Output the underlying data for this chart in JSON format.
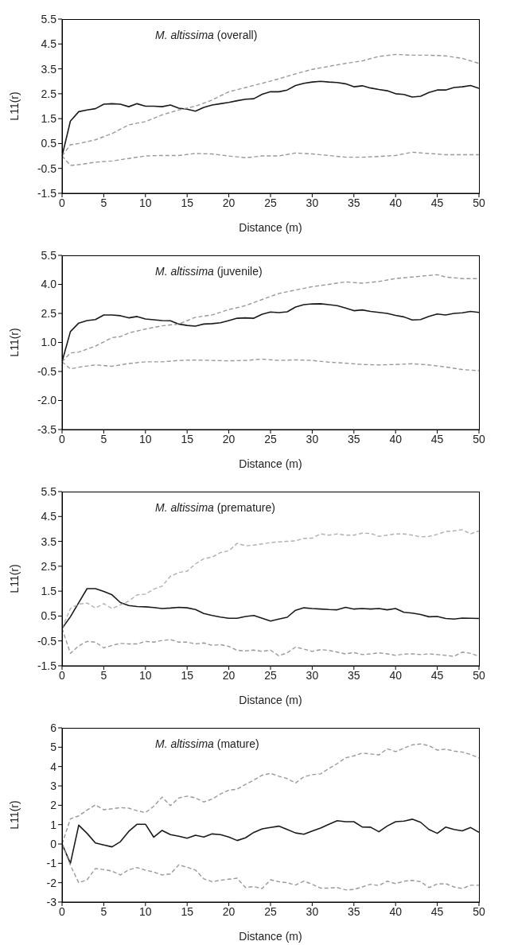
{
  "chart_data": [
    {
      "type": "line",
      "title": "M. altissima (overall)",
      "xlabel": "Distance (m)",
      "ylabel": "L11(r)",
      "xlim": [
        0,
        50
      ],
      "xticks": [
        0,
        5,
        10,
        15,
        20,
        25,
        30,
        35,
        40,
        45,
        50
      ],
      "ylim": [
        -1.5,
        5.5
      ],
      "yticks": [
        -1.5,
        -0.5,
        0.5,
        1.5,
        2.5,
        3.5,
        4.5,
        5.5
      ],
      "grid": false,
      "marker": "none",
      "series": [
        {
          "color": "#1a1a1a",
          "line_style": "solid",
          "x": [
            0,
            1,
            2,
            3,
            4,
            5,
            6,
            7,
            8,
            9,
            10,
            11,
            12,
            13,
            14,
            15,
            16,
            17,
            18,
            19,
            20,
            21,
            22,
            23,
            24,
            25,
            26,
            27,
            28,
            29,
            30,
            31,
            32,
            33,
            34,
            35,
            36,
            37,
            38,
            39,
            40,
            41,
            42,
            43,
            44,
            45,
            46,
            47,
            48,
            49,
            50
          ],
          "values": [
            0,
            1.4,
            1.78,
            1.85,
            1.9,
            2.08,
            2.1,
            2.08,
            1.98,
            2.1,
            2.0,
            2.0,
            1.98,
            2.05,
            1.92,
            1.88,
            1.8,
            1.95,
            2.05,
            2.1,
            2.15,
            2.22,
            2.28,
            2.3,
            2.48,
            2.58,
            2.58,
            2.65,
            2.83,
            2.92,
            2.97,
            3.0,
            2.97,
            2.95,
            2.9,
            2.78,
            2.82,
            2.73,
            2.67,
            2.62,
            2.5,
            2.47,
            2.37,
            2.4,
            2.55,
            2.65,
            2.65,
            2.75,
            2.78,
            2.83,
            2.72
          ]
        },
        {
          "color": "#999999",
          "line_style": "dashed",
          "x": [
            0,
            1,
            2,
            4,
            6,
            8,
            10,
            12,
            14,
            16,
            18,
            20,
            22,
            24,
            26,
            28,
            30,
            32,
            34,
            36,
            38,
            40,
            42,
            44,
            46,
            48,
            50
          ],
          "values": [
            0,
            0.45,
            0.5,
            0.65,
            0.9,
            1.25,
            1.38,
            1.65,
            1.85,
            2.0,
            2.25,
            2.58,
            2.75,
            2.92,
            3.1,
            3.3,
            3.48,
            3.6,
            3.72,
            3.82,
            4.0,
            4.08,
            4.05,
            4.05,
            4.02,
            3.92,
            3.72
          ]
        },
        {
          "color": "#999999",
          "line_style": "dashed",
          "x": [
            0,
            1,
            2,
            4,
            6,
            8,
            10,
            12,
            14,
            16,
            18,
            20,
            22,
            24,
            26,
            28,
            30,
            32,
            34,
            36,
            38,
            40,
            42,
            44,
            46,
            48,
            50
          ],
          "values": [
            0,
            -0.38,
            -0.35,
            -0.25,
            -0.2,
            -0.1,
            0.0,
            0.02,
            0.02,
            0.1,
            0.08,
            0.0,
            -0.07,
            0.0,
            0.0,
            0.12,
            0.08,
            0.02,
            -0.05,
            -0.05,
            -0.02,
            0.02,
            0.15,
            0.1,
            0.05,
            0.05,
            0.05
          ]
        }
      ]
    },
    {
      "type": "line",
      "title": "M. altissima (juvenile)",
      "xlabel": "Distance (m)",
      "ylabel": "L11(r)",
      "xlim": [
        0,
        50
      ],
      "xticks": [
        0,
        5,
        10,
        15,
        20,
        25,
        30,
        35,
        40,
        45,
        50
      ],
      "ylim": [
        -3.5,
        5.5
      ],
      "yticks": [
        -3.5,
        {
          "value": -2,
          "label": "-2.0"
        },
        -0.5,
        {
          "value": 1,
          "label": "1.0"
        },
        2.5,
        {
          "value": 4,
          "label": "4.0"
        },
        5.5
      ],
      "grid": false,
      "marker": "none",
      "series": [
        {
          "color": "#1a1a1a",
          "line_style": "solid",
          "x": [
            0,
            1,
            2,
            3,
            4,
            5,
            6,
            7,
            8,
            9,
            10,
            11,
            12,
            13,
            14,
            15,
            16,
            17,
            18,
            19,
            20,
            21,
            22,
            23,
            24,
            25,
            26,
            27,
            28,
            29,
            30,
            31,
            32,
            33,
            34,
            35,
            36,
            37,
            38,
            39,
            40,
            41,
            42,
            43,
            44,
            45,
            46,
            47,
            48,
            49,
            50
          ],
          "values": [
            0,
            1.56,
            2.0,
            2.13,
            2.18,
            2.42,
            2.42,
            2.38,
            2.27,
            2.34,
            2.21,
            2.17,
            2.13,
            2.12,
            1.95,
            1.88,
            1.84,
            1.95,
            1.97,
            2.02,
            2.13,
            2.25,
            2.27,
            2.25,
            2.46,
            2.57,
            2.54,
            2.58,
            2.83,
            2.95,
            2.99,
            3.0,
            2.95,
            2.9,
            2.78,
            2.64,
            2.68,
            2.6,
            2.55,
            2.5,
            2.4,
            2.32,
            2.16,
            2.18,
            2.35,
            2.47,
            2.42,
            2.5,
            2.53,
            2.6,
            2.55
          ]
        },
        {
          "color": "#999999",
          "line_style": "dashed",
          "x": [
            0,
            1,
            2,
            4,
            6,
            7,
            8,
            10,
            12,
            14,
            16,
            18,
            20,
            22,
            24,
            26,
            28,
            30,
            32,
            34,
            36,
            38,
            40,
            42,
            44,
            45,
            46,
            48,
            50
          ],
          "values": [
            0,
            0.46,
            0.5,
            0.81,
            1.25,
            1.3,
            1.49,
            1.69,
            1.86,
            1.95,
            2.3,
            2.42,
            2.7,
            2.9,
            3.22,
            3.53,
            3.71,
            3.88,
            4.0,
            4.13,
            4.06,
            4.15,
            4.3,
            4.38,
            4.46,
            4.5,
            4.38,
            4.3,
            4.3
          ]
        },
        {
          "color": "#999999",
          "line_style": "dashed",
          "x": [
            0,
            1,
            2,
            4,
            6,
            8,
            10,
            12,
            14,
            16,
            18,
            20,
            22,
            24,
            26,
            28,
            30,
            32,
            34,
            36,
            38,
            40,
            42,
            44,
            46,
            48,
            50
          ],
          "values": [
            0,
            -0.37,
            -0.28,
            -0.16,
            -0.23,
            -0.09,
            0.0,
            0.0,
            0.07,
            0.09,
            0.07,
            0.05,
            0.07,
            0.14,
            0.07,
            0.1,
            0.07,
            -0.02,
            -0.07,
            -0.14,
            -0.16,
            -0.14,
            -0.1,
            -0.16,
            -0.27,
            -0.4,
            -0.46
          ]
        }
      ]
    },
    {
      "type": "line",
      "title": "M. altissima (premature)",
      "xlabel": "Distance (m)",
      "ylabel": "L11(r)",
      "xlim": [
        0,
        50
      ],
      "xticks": [
        0,
        5,
        10,
        15,
        20,
        25,
        30,
        35,
        40,
        45,
        50
      ],
      "ylim": [
        -1.5,
        5.5
      ],
      "yticks": [
        -1.5,
        -0.5,
        0.5,
        1.5,
        2.5,
        3.5,
        4.5,
        5.5
      ],
      "grid": false,
      "marker": "none",
      "series": [
        {
          "color": "#1a1a1a",
          "line_style": "solid",
          "x": [
            0,
            1,
            2,
            3,
            4,
            5,
            6,
            7,
            8,
            9,
            10,
            11,
            12,
            13,
            14,
            15,
            16,
            17,
            18,
            19,
            20,
            21,
            22,
            23,
            24,
            25,
            26,
            27,
            28,
            29,
            30,
            31,
            32,
            33,
            34,
            35,
            36,
            37,
            38,
            39,
            40,
            41,
            42,
            43,
            44,
            45,
            46,
            47,
            48,
            49,
            50
          ],
          "values": [
            0,
            0.47,
            1.04,
            1.6,
            1.6,
            1.49,
            1.35,
            1.04,
            0.92,
            0.88,
            0.87,
            0.84,
            0.8,
            0.82,
            0.85,
            0.83,
            0.76,
            0.6,
            0.52,
            0.46,
            0.41,
            0.41,
            0.48,
            0.52,
            0.41,
            0.3,
            0.38,
            0.45,
            0.73,
            0.83,
            0.8,
            0.78,
            0.76,
            0.75,
            0.85,
            0.78,
            0.8,
            0.78,
            0.8,
            0.75,
            0.8,
            0.65,
            0.62,
            0.56,
            0.47,
            0.48,
            0.4,
            0.38,
            0.42,
            0.41,
            0.4
          ]
        },
        {
          "color": "#b0b0b0",
          "line_style": "dashed",
          "x": [
            0,
            1,
            2,
            3,
            4,
            5,
            6,
            7,
            8,
            9,
            10,
            11,
            12,
            13,
            14,
            15,
            16,
            17,
            18,
            19,
            20,
            21,
            22,
            23,
            24,
            25,
            26,
            27,
            28,
            29,
            30,
            31,
            32,
            33,
            34,
            35,
            36,
            37,
            38,
            39,
            40,
            41,
            42,
            43,
            44,
            45,
            46,
            47,
            48,
            49,
            50
          ],
          "values": [
            0,
            0.8,
            0.98,
            1.02,
            0.82,
            1.0,
            0.8,
            0.95,
            1.1,
            1.35,
            1.38,
            1.58,
            1.7,
            2.1,
            2.25,
            2.3,
            2.6,
            2.8,
            2.87,
            3.05,
            3.12,
            3.42,
            3.32,
            3.35,
            3.4,
            3.45,
            3.48,
            3.5,
            3.52,
            3.62,
            3.63,
            3.8,
            3.75,
            3.8,
            3.75,
            3.75,
            3.83,
            3.82,
            3.7,
            3.75,
            3.8,
            3.8,
            3.75,
            3.68,
            3.7,
            3.78,
            3.9,
            3.92,
            3.97,
            3.8,
            3.92
          ]
        },
        {
          "color": "#999999",
          "line_style": "dashed",
          "x": [
            0,
            1,
            2,
            3,
            4,
            5,
            6,
            7,
            8,
            9,
            10,
            11,
            12,
            13,
            14,
            15,
            16,
            17,
            18,
            19,
            20,
            21,
            22,
            23,
            24,
            25,
            26,
            27,
            28,
            29,
            30,
            31,
            32,
            33,
            34,
            35,
            36,
            37,
            38,
            39,
            40,
            41,
            42,
            43,
            44,
            45,
            46,
            47,
            48,
            49,
            50
          ],
          "values": [
            0,
            -1.0,
            -0.7,
            -0.52,
            -0.55,
            -0.78,
            -0.68,
            -0.6,
            -0.62,
            -0.62,
            -0.52,
            -0.55,
            -0.48,
            -0.45,
            -0.55,
            -0.55,
            -0.62,
            -0.58,
            -0.68,
            -0.65,
            -0.72,
            -0.88,
            -0.9,
            -0.87,
            -0.92,
            -0.87,
            -1.1,
            -0.98,
            -0.75,
            -0.83,
            -0.92,
            -0.85,
            -0.88,
            -0.95,
            -1.02,
            -0.97,
            -1.05,
            -1.02,
            -0.98,
            -1.02,
            -1.08,
            -1.03,
            -1.02,
            -1.05,
            -1.02,
            -1.05,
            -1.08,
            -1.12,
            -0.95,
            -1.0,
            -1.12
          ]
        }
      ]
    },
    {
      "type": "line",
      "title": "M. altissima (mature)",
      "xlabel": "Distance (m)",
      "ylabel": "L11(r)",
      "xlim": [
        0,
        50
      ],
      "xticks": [
        0,
        5,
        10,
        15,
        20,
        25,
        30,
        35,
        40,
        45,
        50
      ],
      "ylim": [
        -3,
        6
      ],
      "yticks": [
        -3,
        -2,
        -1,
        0,
        1,
        2,
        3,
        4,
        5,
        6
      ],
      "grid": false,
      "marker": "none",
      "series": [
        {
          "color": "#1a1a1a",
          "line_style": "solid",
          "x": [
            0,
            1,
            2,
            3,
            4,
            5,
            6,
            7,
            8,
            9,
            10,
            11,
            12,
            13,
            14,
            15,
            16,
            17,
            18,
            19,
            20,
            21,
            22,
            23,
            24,
            25,
            26,
            27,
            28,
            29,
            30,
            31,
            32,
            33,
            34,
            35,
            36,
            37,
            38,
            39,
            40,
            41,
            42,
            43,
            44,
            45,
            46,
            47,
            48,
            49,
            50
          ],
          "values": [
            0,
            -1.0,
            0.97,
            0.55,
            0.05,
            -0.05,
            -0.15,
            0.12,
            0.65,
            1.02,
            1.02,
            0.35,
            0.7,
            0.48,
            0.4,
            0.3,
            0.45,
            0.36,
            0.52,
            0.48,
            0.36,
            0.18,
            0.32,
            0.6,
            0.78,
            0.85,
            0.92,
            0.75,
            0.57,
            0.5,
            0.67,
            0.82,
            1.02,
            1.2,
            1.15,
            1.15,
            0.88,
            0.87,
            0.63,
            0.93,
            1.15,
            1.18,
            1.28,
            1.12,
            0.75,
            0.55,
            0.87,
            0.75,
            0.68,
            0.85,
            0.6
          ]
        },
        {
          "color": "#999999",
          "line_style": "dashed",
          "x": [
            0,
            1,
            2,
            3,
            4,
            5,
            6,
            7,
            8,
            9,
            10,
            11,
            12,
            13,
            14,
            15,
            16,
            17,
            18,
            19,
            20,
            21,
            22,
            23,
            24,
            25,
            26,
            27,
            28,
            29,
            30,
            31,
            32,
            33,
            34,
            35,
            36,
            37,
            38,
            39,
            40,
            41,
            42,
            43,
            44,
            45,
            46,
            47,
            48,
            49,
            50
          ],
          "values": [
            0,
            1.3,
            1.45,
            1.75,
            2.02,
            1.77,
            1.82,
            1.88,
            1.85,
            1.72,
            1.62,
            1.95,
            2.42,
            1.98,
            2.38,
            2.47,
            2.38,
            2.17,
            2.32,
            2.58,
            2.78,
            2.83,
            3.08,
            3.3,
            3.55,
            3.65,
            3.5,
            3.38,
            3.15,
            3.47,
            3.58,
            3.62,
            3.9,
            4.15,
            4.45,
            4.55,
            4.7,
            4.65,
            4.6,
            4.92,
            4.77,
            4.95,
            5.12,
            5.17,
            5.08,
            4.85,
            4.9,
            4.8,
            4.75,
            4.62,
            4.45
          ]
        },
        {
          "color": "#999999",
          "line_style": "dashed",
          "x": [
            0,
            1,
            2,
            3,
            4,
            5,
            6,
            7,
            8,
            9,
            10,
            11,
            12,
            13,
            14,
            15,
            16,
            17,
            18,
            19,
            20,
            21,
            22,
            23,
            24,
            25,
            26,
            27,
            28,
            29,
            30,
            31,
            32,
            33,
            34,
            35,
            36,
            37,
            38,
            39,
            40,
            41,
            42,
            43,
            44,
            45,
            46,
            47,
            48,
            49,
            50
          ],
          "values": [
            0,
            -1.1,
            -2.0,
            -1.85,
            -1.27,
            -1.32,
            -1.4,
            -1.6,
            -1.33,
            -1.22,
            -1.35,
            -1.45,
            -1.6,
            -1.55,
            -1.08,
            -1.2,
            -1.35,
            -1.8,
            -1.95,
            -1.87,
            -1.82,
            -1.77,
            -2.25,
            -2.2,
            -2.3,
            -1.85,
            -1.95,
            -2.0,
            -2.12,
            -1.92,
            -2.08,
            -2.28,
            -2.28,
            -2.25,
            -2.37,
            -2.35,
            -2.22,
            -2.08,
            -2.15,
            -1.92,
            -2.05,
            -1.92,
            -1.88,
            -1.95,
            -2.25,
            -2.07,
            -2.05,
            -2.22,
            -2.3,
            -2.13,
            -2.13
          ]
        }
      ]
    }
  ]
}
